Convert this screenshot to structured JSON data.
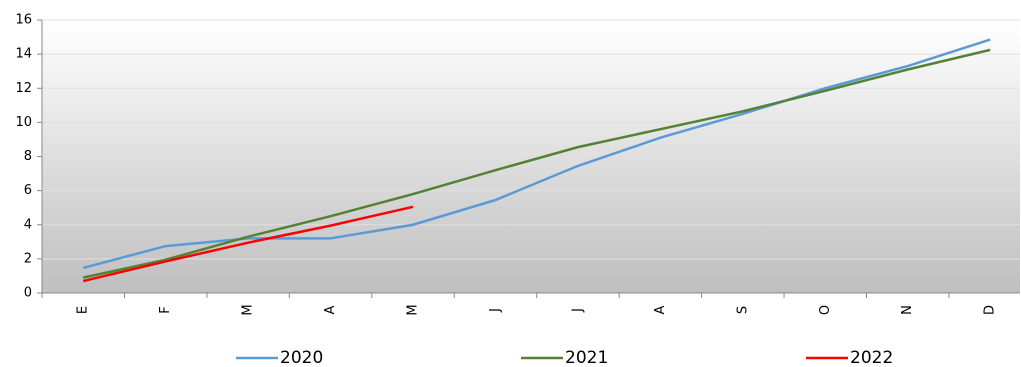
{
  "chart_data": {
    "type": "line",
    "categories": [
      "E",
      "F",
      "M",
      "A",
      "M",
      "J",
      "J",
      "A",
      "S",
      "O",
      "N",
      "D"
    ],
    "series": [
      {
        "name": "2020",
        "color": "#5b9bd5",
        "values": [
          1.47,
          2.75,
          3.2,
          3.2,
          4.0,
          5.45,
          7.45,
          9.1,
          10.5,
          12.0,
          13.3,
          14.85
        ]
      },
      {
        "name": "2021",
        "color": "#548235",
        "values": [
          0.9,
          1.95,
          3.3,
          4.5,
          5.8,
          7.2,
          8.55,
          9.6,
          10.65,
          11.85,
          13.1,
          14.25
        ]
      },
      {
        "name": "2022",
        "color": "#ff0000",
        "values": [
          0.7,
          1.85,
          2.95,
          3.95,
          5.05,
          null,
          null,
          null,
          null,
          null,
          null,
          null
        ]
      }
    ],
    "ylim": [
      0,
      16
    ],
    "yticks": [
      0,
      2,
      4,
      6,
      8,
      10,
      12,
      14,
      16
    ],
    "grid": true,
    "legend": "bottom"
  }
}
